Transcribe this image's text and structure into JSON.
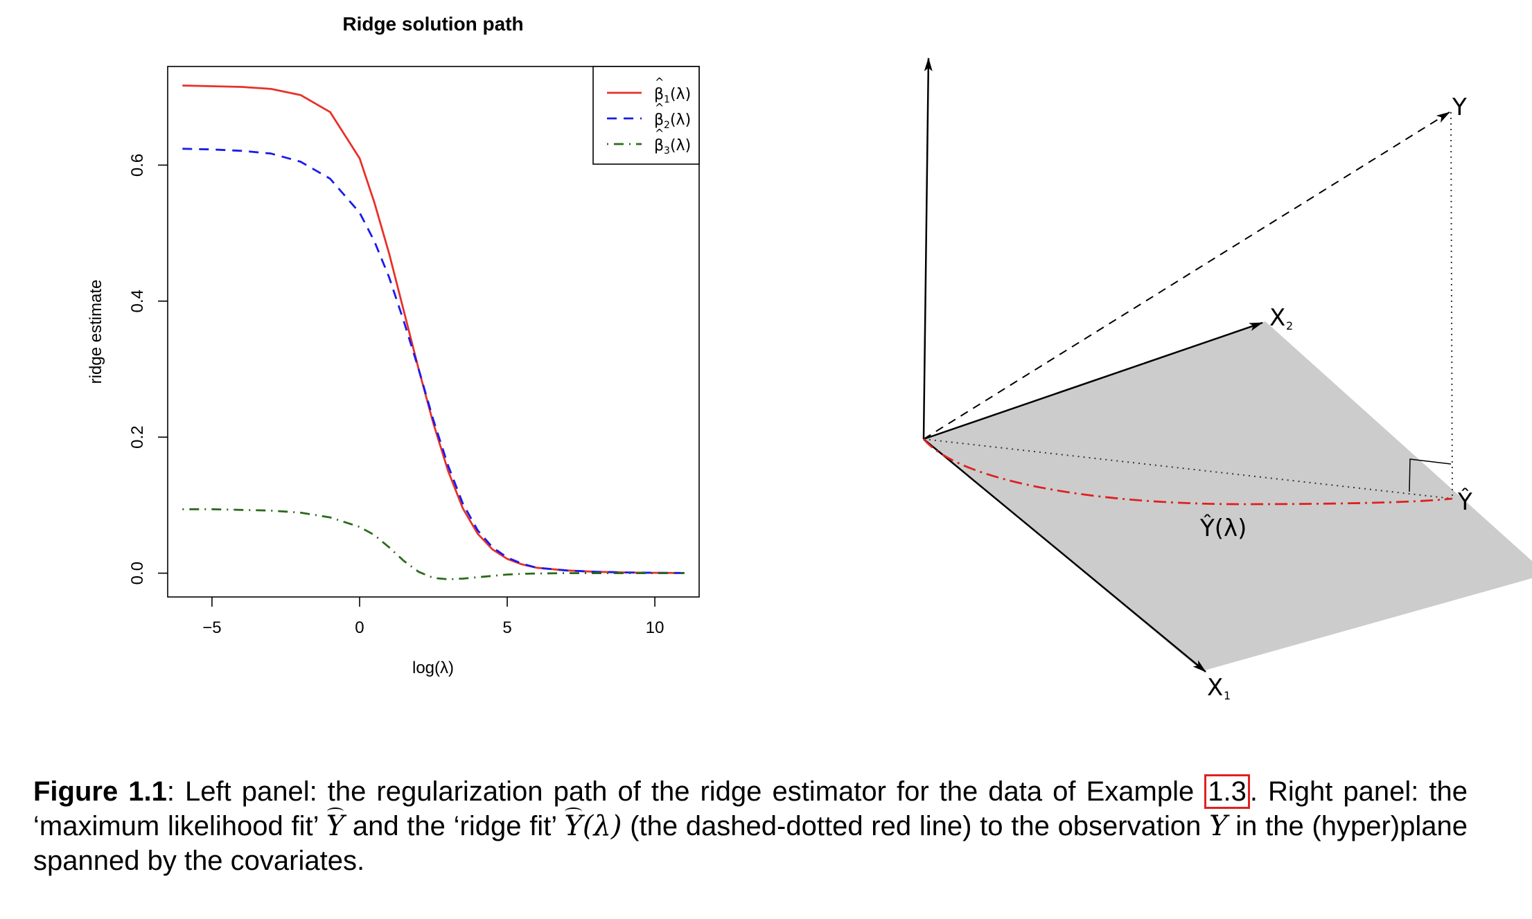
{
  "left_panel": {
    "chart_data": {
      "type": "line",
      "title": "Ridge solution path",
      "xlabel": "log(λ)",
      "ylabel": "ridge estimate",
      "xlim": [
        -6.5,
        11.5
      ],
      "ylim": [
        -0.035,
        0.745
      ],
      "xticks": [
        -5,
        0,
        5,
        10
      ],
      "xtick_labels": [
        "−5",
        "0",
        "5",
        "10"
      ],
      "yticks": [
        0.0,
        0.2,
        0.4,
        0.6
      ],
      "ytick_labels": [
        "0.0",
        "0.2",
        "0.4",
        "0.6"
      ],
      "legend_placement": "top-right",
      "grid": false,
      "x": [
        -6,
        -5,
        -4,
        -3,
        -2,
        -1,
        0,
        0.5,
        1,
        1.5,
        2,
        2.5,
        3,
        3.5,
        4,
        4.5,
        5,
        5.5,
        6,
        7,
        8,
        9,
        10,
        11
      ],
      "series": [
        {
          "name": "β1(λ)",
          "legend_symbol": "β",
          "legend_sub": "1",
          "legend_suffix": "(λ)",
          "color": "#e8302a",
          "dash": "solid",
          "values": [
            0.717,
            0.716,
            0.715,
            0.712,
            0.703,
            0.678,
            0.61,
            0.545,
            0.47,
            0.385,
            0.3,
            0.22,
            0.15,
            0.095,
            0.058,
            0.035,
            0.021,
            0.013,
            0.008,
            0.004,
            0.002,
            0.001,
            0.0005,
            0.0002
          ]
        },
        {
          "name": "β2(λ)",
          "legend_symbol": "β",
          "legend_sub": "2",
          "legend_suffix": "(λ)",
          "color": "#1a1aee",
          "dash": "dashed",
          "values": [
            0.624,
            0.623,
            0.621,
            0.617,
            0.605,
            0.58,
            0.53,
            0.488,
            0.435,
            0.37,
            0.3,
            0.225,
            0.158,
            0.102,
            0.063,
            0.038,
            0.023,
            0.014,
            0.008,
            0.004,
            0.002,
            0.001,
            0.0005,
            0.0002
          ]
        },
        {
          "name": "β3(λ)",
          "legend_symbol": "β",
          "legend_sub": "3",
          "legend_suffix": "(λ)",
          "color": "#2a6a1a",
          "dash": "dotdash",
          "values": [
            0.094,
            0.094,
            0.093,
            0.092,
            0.089,
            0.082,
            0.068,
            0.056,
            0.038,
            0.018,
            0.002,
            -0.007,
            -0.009,
            -0.008,
            -0.006,
            -0.004,
            -0.002,
            -0.001,
            -0.0005,
            0.0,
            0.0,
            0.0,
            0.0,
            0.0
          ]
        }
      ]
    }
  },
  "right_panel": {
    "labels": {
      "y": "Y",
      "x2": "X",
      "x2_sub": "2",
      "x1": "X",
      "x1_sub": "1",
      "yhat": "Ŷ",
      "yhat_lambda": "Ŷ(λ)"
    },
    "colors": {
      "plane": "#cccccc",
      "ridge_path": "#e02020"
    }
  },
  "caption": {
    "label": "Figure 1.1",
    "text_1": ": Left panel: the regularization path of the ridge estimator for the data of Example ",
    "ref": "1.3",
    "text_2": ". Right panel: the ‘maximum likelihood fit’ ",
    "sym_y": "Y",
    "text_3": " and the ‘ridge fit’ ",
    "sym_y2": "Y",
    "sym_lambda": "(λ)",
    "text_4": " (the dashed-dotted red line) to the observation ",
    "sym_y3": "Y",
    "text_5": " in the (hyper)plane spanned by the covariates."
  }
}
